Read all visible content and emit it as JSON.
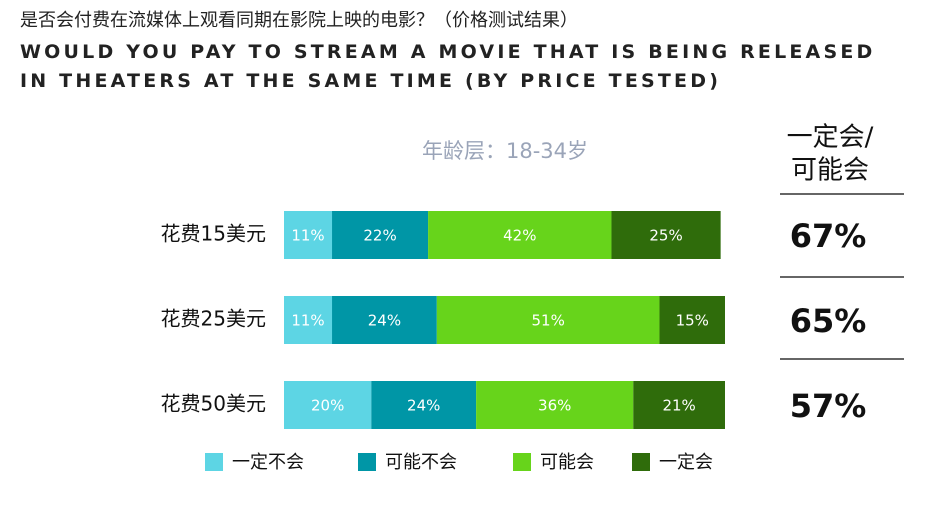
{
  "chart_data": {
    "type": "stacked-bar-horizontal",
    "title": "是否会付费在流媒体上观看同期在影院上映的电影？（价格测试结果）",
    "title_en": "WOULD YOU PAY TO STREAM A MOVIE THAT IS BEING RELEASED IN THEATERS AT THE SAME TIME (BY PRICE TESTED)",
    "subtitle": "年龄层：18-34岁",
    "categories": [
      "花费15美元",
      "花费25美元",
      "花费50美元"
    ],
    "series": [
      {
        "name": "一定不会",
        "color": "#5dd5e4",
        "values": [
          11,
          11,
          20
        ],
        "value_labels": [
          "11%",
          "11%",
          "20%"
        ]
      },
      {
        "name": "可能不会",
        "color": "#0096a6",
        "values": [
          22,
          24,
          24
        ],
        "value_labels": [
          "22%",
          "24%",
          "24%"
        ]
      },
      {
        "name": "可能会",
        "color": "#67d41b",
        "values": [
          42,
          51,
          36
        ],
        "value_labels": [
          "42%",
          "51%",
          "36%"
        ]
      },
      {
        "name": "一定会",
        "color": "#2f6c0b",
        "values": [
          25,
          15,
          21
        ],
        "value_labels": [
          "25%",
          "15%",
          "21%"
        ]
      }
    ],
    "summary_title": [
      "一定会/",
      "可能会"
    ],
    "summary": [
      "67%",
      "65%",
      "57%"
    ]
  }
}
